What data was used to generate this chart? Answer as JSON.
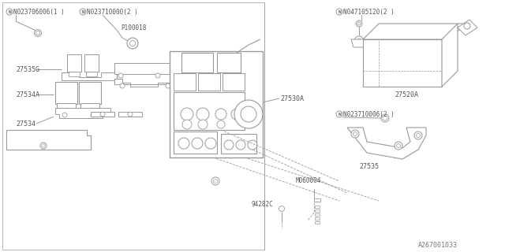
{
  "bg_color": "#ffffff",
  "lc": "#999999",
  "tc": "#555555",
  "figsize": [
    6.4,
    3.2
  ],
  "dpi": 100,
  "labels": {
    "N1": "N023706006(1 )",
    "N2": "N023710000(2 )",
    "P1": "P100018",
    "L1": "27535G",
    "L2": "27534A",
    "L3": "27534",
    "L4": "27530A",
    "L5": "27520A",
    "N3": "N047105120(2 )",
    "N4": "N023710006(2 )",
    "M1": "M060004",
    "C1": "94282C",
    "L6": "27535",
    "footer": "A267001033"
  }
}
